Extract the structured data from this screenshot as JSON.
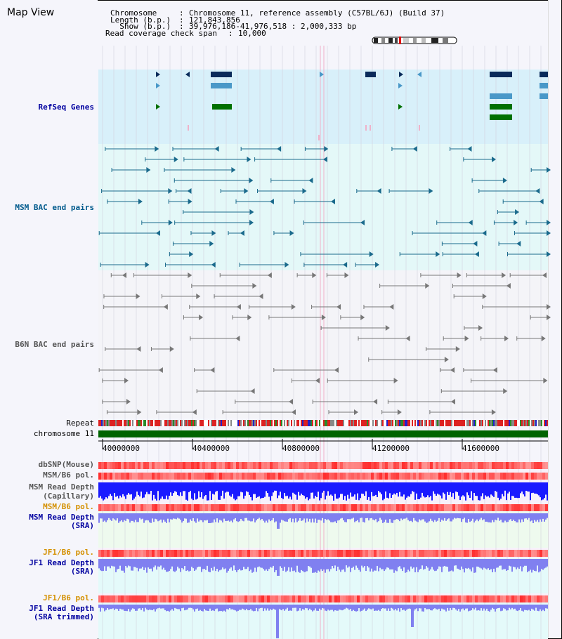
{
  "page": {
    "title": "Map View"
  },
  "header": {
    "chromosome_key": "Chromosome    ",
    "chromosome_val": "Chromosome 11, reference assembly (C57BL/6J) (Build 37)",
    "length_key": "Length (b.p.) ",
    "length_val": "121,843,856",
    "show_key": "  Show (b.p.) ",
    "show_val": "39,976,186-41,976,518 : 2,000,333 bp",
    "coverage_key": "Read coverage check span",
    "coverage_val": "10,000",
    "sep": ":"
  },
  "tracks": {
    "refseq": "RefSeq Genes",
    "msm_bac": "MSM BAC end pairs",
    "b6n_bac": "B6N BAC end pairs",
    "repeat": "Repeat",
    "chromosome": "chromosome 11",
    "dbsnp": "dbSNP(Mouse)",
    "msm_b6_pol_1": "MSM/B6 pol.",
    "msm_read_depth_cap_1": "MSM Read Depth",
    "msm_read_depth_cap_2": "(Capillary)",
    "msm_b6_pol_2": "MSM/B6 pol.",
    "msm_read_depth_sra_1": "MSM Read Depth",
    "msm_read_depth_sra_2": "(SRA)",
    "jf1_b6_pol_1": "JF1/B6 pol.",
    "jf1_read_depth_sra_1": "JF1 Read Depth",
    "jf1_read_depth_sra_2": "(SRA)",
    "jf1_b6_pol_2": "JF1/B6 pol.",
    "jf1_read_depth_trim_1": "JF1 Read Depth",
    "jf1_read_depth_trim_2": "(SRA trimmed)"
  },
  "axis": {
    "ticks": [
      "40000000",
      "40400000",
      "40800000",
      "41200000",
      "41600000"
    ]
  },
  "colors": {
    "refseq_bg": "#d8f0fa",
    "msm_bg": "#e4f8f8",
    "b6n_bg": "#f4f4f8",
    "gene_dark": "#0a2a5a",
    "gene_mid": "#4a98c8",
    "gene_green": "#007000",
    "msm_line": "#1a6a8c",
    "b6n_line": "#777777",
    "chrom_bar": "#006400",
    "depth_blue": "#1a1aff",
    "depth_light": "#8080f0"
  }
}
